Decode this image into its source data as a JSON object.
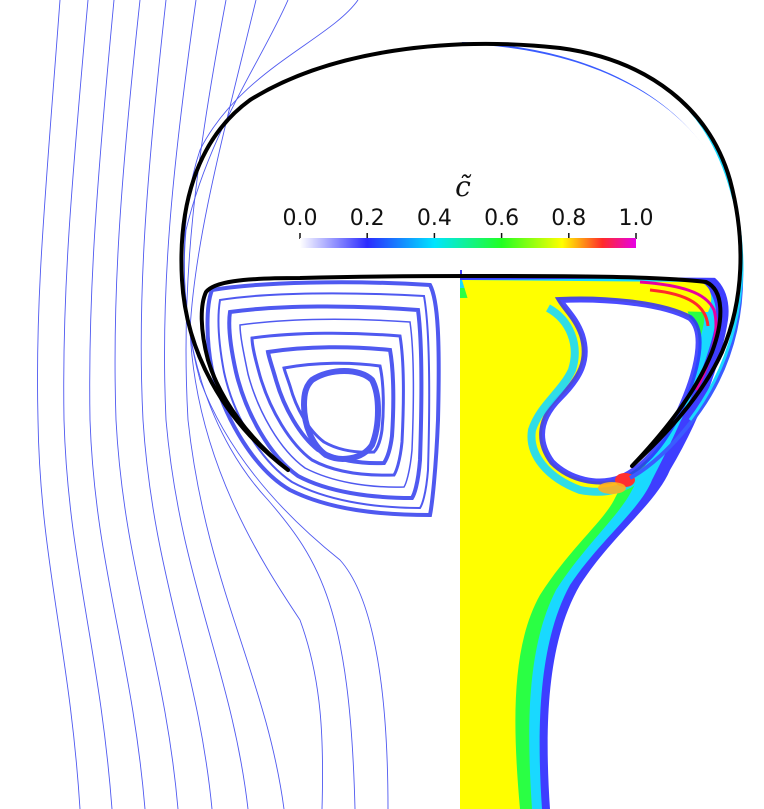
{
  "colorbar": {
    "title": "c̃",
    "ticks": [
      "0.0",
      "0.2",
      "0.4",
      "0.6",
      "0.8",
      "1.0"
    ],
    "colors": [
      "#ffffff",
      "#2b2bff",
      "#00e5ff",
      "#22ff22",
      "#ffff00",
      "#ff2a2a",
      "#e600e6"
    ]
  },
  "colors": {
    "streamline": "#4f59f0",
    "interface": "#000000",
    "field_core": "#ffff00"
  }
}
